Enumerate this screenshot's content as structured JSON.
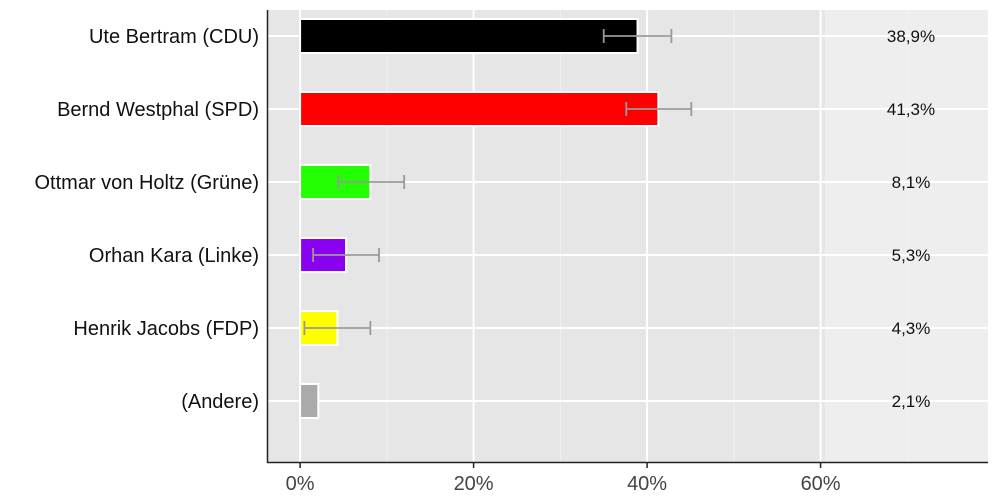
{
  "chart_data": {
    "type": "bar",
    "orientation": "horizontal",
    "categories": [
      "Ute Bertram (CDU)",
      "Bernd Westphal (SPD)",
      "Ottmar von Holtz (Grüne)",
      "Orhan Kara (Linke)",
      "Henrik Jacobs (FDP)",
      "(Andere)"
    ],
    "values": [
      38.9,
      41.3,
      8.1,
      5.3,
      4.3,
      2.1
    ],
    "value_labels": [
      "38,9%",
      "41,3%",
      "8,1%",
      "5,3%",
      "4,3%",
      "2,1%"
    ],
    "error_bars": [
      [
        35.0,
        42.8
      ],
      [
        37.6,
        45.1
      ],
      [
        4.4,
        12.0
      ],
      [
        1.5,
        9.1
      ],
      [
        0.5,
        8.1
      ],
      null
    ],
    "colors": [
      "#000000",
      "#ff0000",
      "#22ff00",
      "#8a00f0",
      "#ffff00",
      "#aaaaaa"
    ],
    "x_ticks": [
      0,
      20,
      40,
      60
    ],
    "x_tick_labels": [
      "0%",
      "20%",
      "40%",
      "60%"
    ],
    "xlim": [
      -3.7,
      79.3
    ],
    "grid": true,
    "title": "",
    "xlabel": "",
    "ylabel": ""
  }
}
